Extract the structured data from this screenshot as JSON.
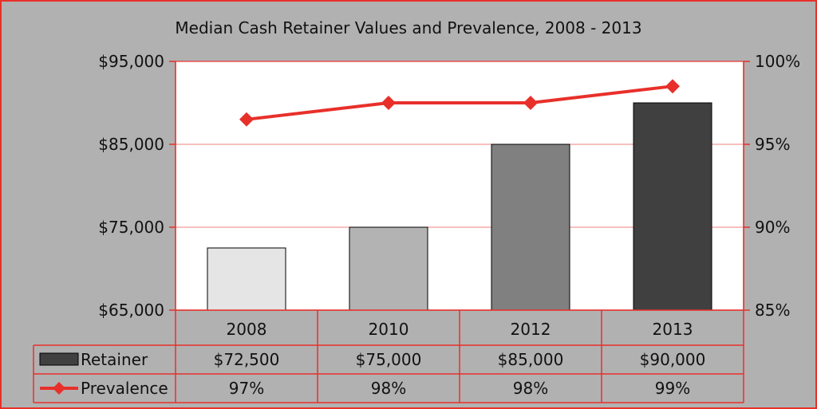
{
  "chart_data": {
    "type": "bar",
    "title": "Median Cash Retainer Values and Prevalence, 2008 - 2013",
    "categories": [
      "2008",
      "2010",
      "2012",
      "2013"
    ],
    "series": [
      {
        "name": "Retainer",
        "type": "bar",
        "axis": "left",
        "values": [
          72500,
          75000,
          85000,
          90000
        ],
        "labels": [
          "$72,500",
          "$75,000",
          "$85,000",
          "$90,000"
        ],
        "colors": [
          "#e5e5e5",
          "#b3b3b3",
          "#808080",
          "#404040"
        ]
      },
      {
        "name": "Prevalence",
        "type": "line",
        "axis": "right",
        "values": [
          97,
          98,
          98,
          99
        ],
        "labels": [
          "97%",
          "98%",
          "98%",
          "99%"
        ],
        "color": "#e8302a"
      }
    ],
    "plotted_prevalence": [
      96.5,
      97.5,
      97.5,
      98.5
    ],
    "y_left": {
      "ylim": [
        65000,
        95000
      ],
      "ticks": [
        65000,
        75000,
        85000,
        95000
      ],
      "tick_labels": [
        "$65,000",
        "$75,000",
        "$85,000",
        "$95,000"
      ]
    },
    "y_right": {
      "ylim": [
        85,
        100
      ],
      "ticks": [
        85,
        90,
        95,
        100
      ],
      "tick_labels": [
        "85%",
        "90%",
        "95%",
        "100%"
      ]
    },
    "grid": true,
    "legend": "data-table"
  },
  "colors": {
    "frame_bg": "#b1b1b1",
    "plot_bg": "#ffffff",
    "accent": "#e8302a",
    "text": "#111111"
  }
}
